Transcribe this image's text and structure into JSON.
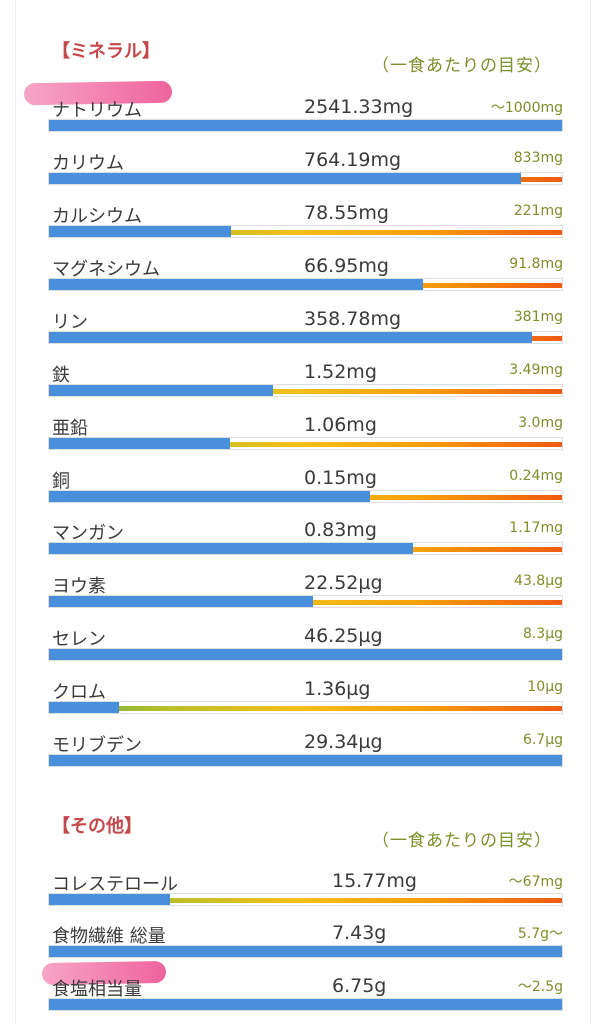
{
  "colors": {
    "bar_fill": "#4a8fdc",
    "header": "#c5474a",
    "note": "#7b8f2a",
    "highlighter": "#ec4a8c"
  },
  "minerals": {
    "title": "【ミネラル】",
    "note": "（一食あたりの目安）",
    "items": [
      {
        "name": "ナトリウム",
        "value": "2541.33mg",
        "target": "～1000mg",
        "fill_pct": 100
      },
      {
        "name": "カリウム",
        "value": "764.19mg",
        "target": "833mg",
        "fill_pct": 92
      },
      {
        "name": "カルシウム",
        "value": "78.55mg",
        "target": "221mg",
        "fill_pct": 35.5
      },
      {
        "name": "マグネシウム",
        "value": "66.95mg",
        "target": "91.8mg",
        "fill_pct": 73
      },
      {
        "name": "リン",
        "value": "358.78mg",
        "target": "381mg",
        "fill_pct": 94.2
      },
      {
        "name": "鉄",
        "value": "1.52mg",
        "target": "3.49mg",
        "fill_pct": 43.6
      },
      {
        "name": "亜鉛",
        "value": "1.06mg",
        "target": "3.0mg",
        "fill_pct": 35.3
      },
      {
        "name": "銅",
        "value": "0.15mg",
        "target": "0.24mg",
        "fill_pct": 62.5
      },
      {
        "name": "マンガン",
        "value": "0.83mg",
        "target": "1.17mg",
        "fill_pct": 71
      },
      {
        "name": "ヨウ素",
        "value": "22.52µg",
        "target": "43.8µg",
        "fill_pct": 51.4
      },
      {
        "name": "セレン",
        "value": "46.25µg",
        "target": "8.3µg",
        "fill_pct": 100
      },
      {
        "name": "クロム",
        "value": "1.36µg",
        "target": "10µg",
        "fill_pct": 13.6
      },
      {
        "name": "モリブデン",
        "value": "29.34µg",
        "target": "6.7µg",
        "fill_pct": 100
      }
    ]
  },
  "others": {
    "title": "【その他】",
    "note": "（一食あたりの目安）",
    "items": [
      {
        "name": "コレステロール",
        "value": "15.77mg",
        "target": "～67mg",
        "fill_pct": 23.5
      },
      {
        "name": "食物繊維 総量",
        "value": "7.43g",
        "target": "5.7g～",
        "fill_pct": 100
      },
      {
        "name": "食塩相当量",
        "value": "6.75g",
        "target": "～2.5g",
        "fill_pct": 100
      }
    ]
  }
}
